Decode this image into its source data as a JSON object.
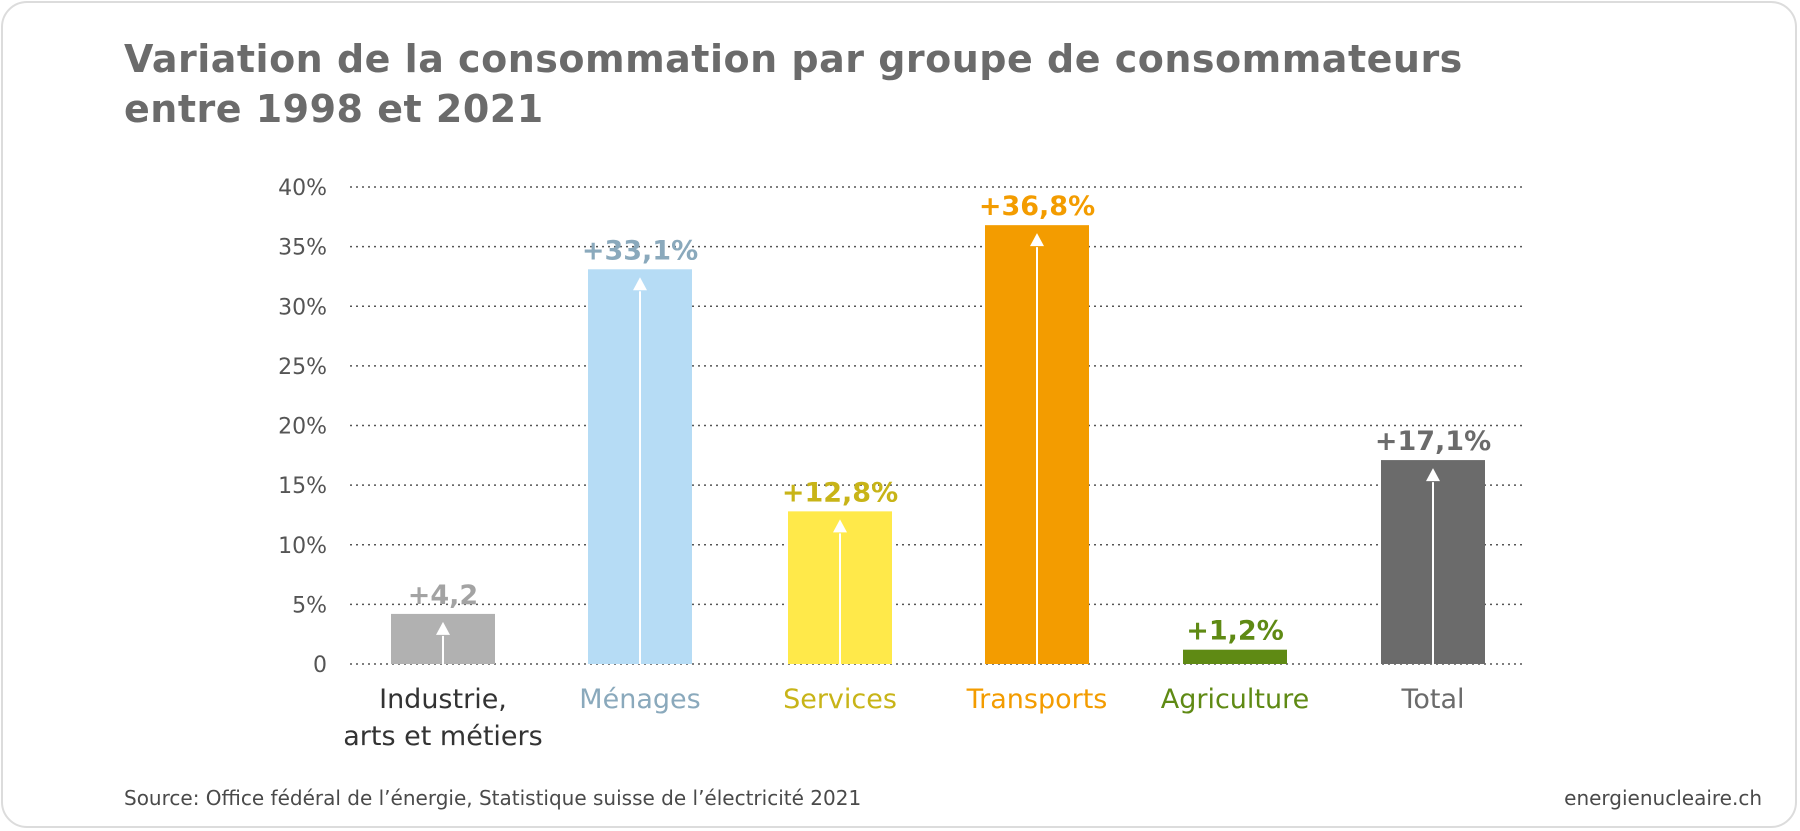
{
  "title_lines": [
    "Variation de la consommation par groupe de consommateurs",
    "entre 1998 et 2021"
  ],
  "source": "Source: Office fédéral de l’énergie, Statistique suisse de l’électricité 2021",
  "brand": "energienucleaire.ch",
  "colors": {
    "industrie": "#b1b1b1",
    "menages": "#b6dcf5",
    "services": "#ffe94a",
    "transports": "#f39c00",
    "agriculture": "#5f8a14",
    "total": "#6b6b6b",
    "arrow": "#ffffff",
    "grid": "#555555",
    "axis_text": "#555555"
  },
  "chart_data": {
    "type": "bar",
    "ylim": [
      0,
      40
    ],
    "grid": true,
    "y_ticks": [
      {
        "value": 0,
        "label": "0"
      },
      {
        "value": 5,
        "label": "5%"
      },
      {
        "value": 10,
        "label": "10%"
      },
      {
        "value": 15,
        "label": "15%"
      },
      {
        "value": 20,
        "label": "20%"
      },
      {
        "value": 25,
        "label": "25%"
      },
      {
        "value": 30,
        "label": "30%"
      },
      {
        "value": 35,
        "label": "35%"
      },
      {
        "value": 40,
        "label": "40%"
      }
    ],
    "categories": [
      {
        "key": "industrie",
        "label_lines": [
          "Industrie,",
          "arts et métiers"
        ],
        "value": 4.2,
        "data_label": "+4,2",
        "bar_color": "#b1b1b1",
        "label_color": "#333333",
        "value_color": "#a3a3a3"
      },
      {
        "key": "menages",
        "label_lines": [
          "Ménages"
        ],
        "value": 33.1,
        "data_label": "+33,1%",
        "bar_color": "#b6dcf5",
        "label_color": "#8aa9bc",
        "value_color": "#8aa9bc"
      },
      {
        "key": "services",
        "label_lines": [
          "Services"
        ],
        "value": 12.8,
        "data_label": "+12,8%",
        "bar_color": "#ffe94a",
        "label_color": "#c8b418",
        "value_color": "#c8b418"
      },
      {
        "key": "transports",
        "label_lines": [
          "Transports"
        ],
        "value": 36.8,
        "data_label": "+36,8%",
        "bar_color": "#f39c00",
        "label_color": "#f39c00",
        "value_color": "#f39c00"
      },
      {
        "key": "agriculture",
        "label_lines": [
          "Agriculture"
        ],
        "value": 1.2,
        "data_label": "+1,2%",
        "bar_color": "#5f8a14",
        "label_color": "#5f8a14",
        "value_color": "#5f8a14"
      },
      {
        "key": "total",
        "label_lines": [
          "Total"
        ],
        "value": 17.1,
        "data_label": "+17,1%",
        "bar_color": "#6b6b6b",
        "label_color": "#6b6b6b",
        "value_color": "#6b6b6b"
      }
    ]
  }
}
